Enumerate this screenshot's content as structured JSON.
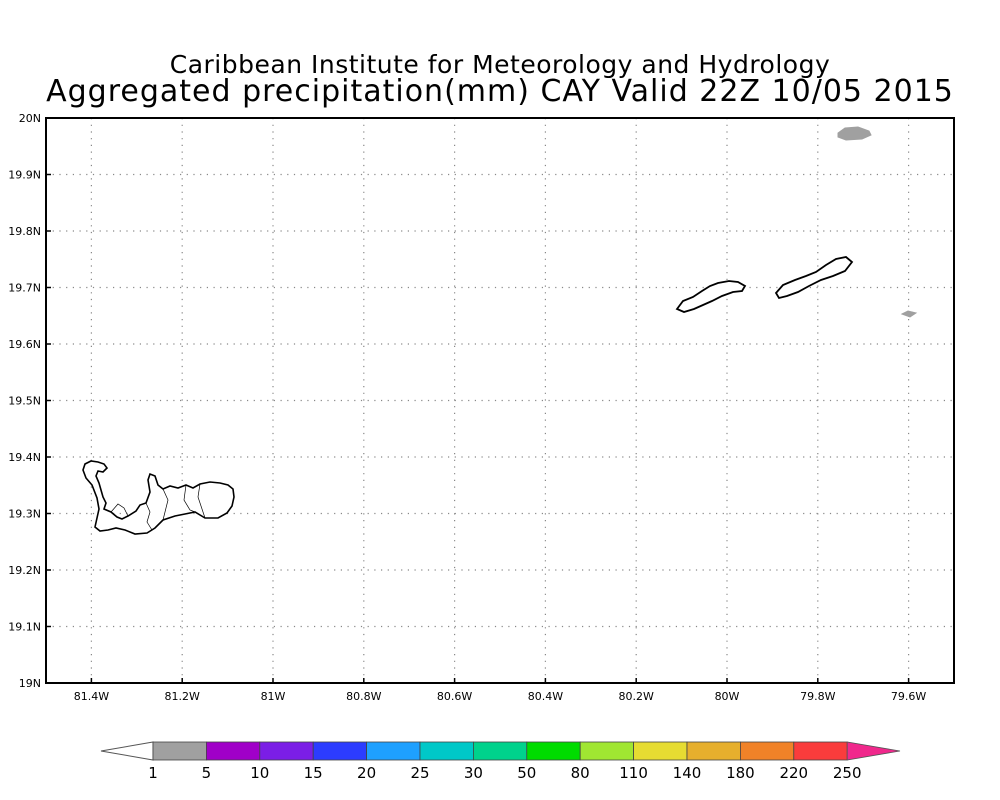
{
  "title": {
    "line1": "Caribbean Institute for Meteorology and Hydrology",
    "line2": "Aggregated precipitation(mm) CAY Valid 22Z 10/05 2015"
  },
  "map": {
    "lon_range": [
      -81.5,
      -79.5
    ],
    "lat_range": [
      19.0,
      20.0
    ],
    "grid": "dotted",
    "lat_ticks": [
      {
        "value": 20.0,
        "label": "20N"
      },
      {
        "value": 19.9,
        "label": "19.9N"
      },
      {
        "value": 19.8,
        "label": "19.8N"
      },
      {
        "value": 19.7,
        "label": "19.7N"
      },
      {
        "value": 19.6,
        "label": "19.6N"
      },
      {
        "value": 19.5,
        "label": "19.5N"
      },
      {
        "value": 19.4,
        "label": "19.4N"
      },
      {
        "value": 19.3,
        "label": "19.3N"
      },
      {
        "value": 19.2,
        "label": "19.2N"
      },
      {
        "value": 19.1,
        "label": "19.1N"
      },
      {
        "value": 19.0,
        "label": "19N"
      }
    ],
    "lon_ticks": [
      {
        "value": -81.4,
        "label": "81.4W"
      },
      {
        "value": -81.2,
        "label": "81.2W"
      },
      {
        "value": -81.0,
        "label": "81W"
      },
      {
        "value": -80.8,
        "label": "80.8W"
      },
      {
        "value": -80.6,
        "label": "80.6W"
      },
      {
        "value": -80.4,
        "label": "80.4W"
      },
      {
        "value": -80.2,
        "label": "80.2W"
      },
      {
        "value": -80.0,
        "label": "80W"
      },
      {
        "value": -79.8,
        "label": "79.8W"
      },
      {
        "value": -79.6,
        "label": "79.6W"
      }
    ],
    "precip_color": "#a0a0a0"
  },
  "colorbar": {
    "labels": [
      "1",
      "5",
      "10",
      "15",
      "20",
      "25",
      "30",
      "50",
      "80",
      "110",
      "140",
      "180",
      "220",
      "250"
    ],
    "colors": [
      "#a0a0a0",
      "#a000c8",
      "#7b1ee6",
      "#2c3cff",
      "#1ea0ff",
      "#00c8c8",
      "#00d28c",
      "#00dc00",
      "#a0e632",
      "#e6dc32",
      "#e6af2d",
      "#f08228",
      "#fa3c3c",
      "#f0288c"
    ]
  }
}
